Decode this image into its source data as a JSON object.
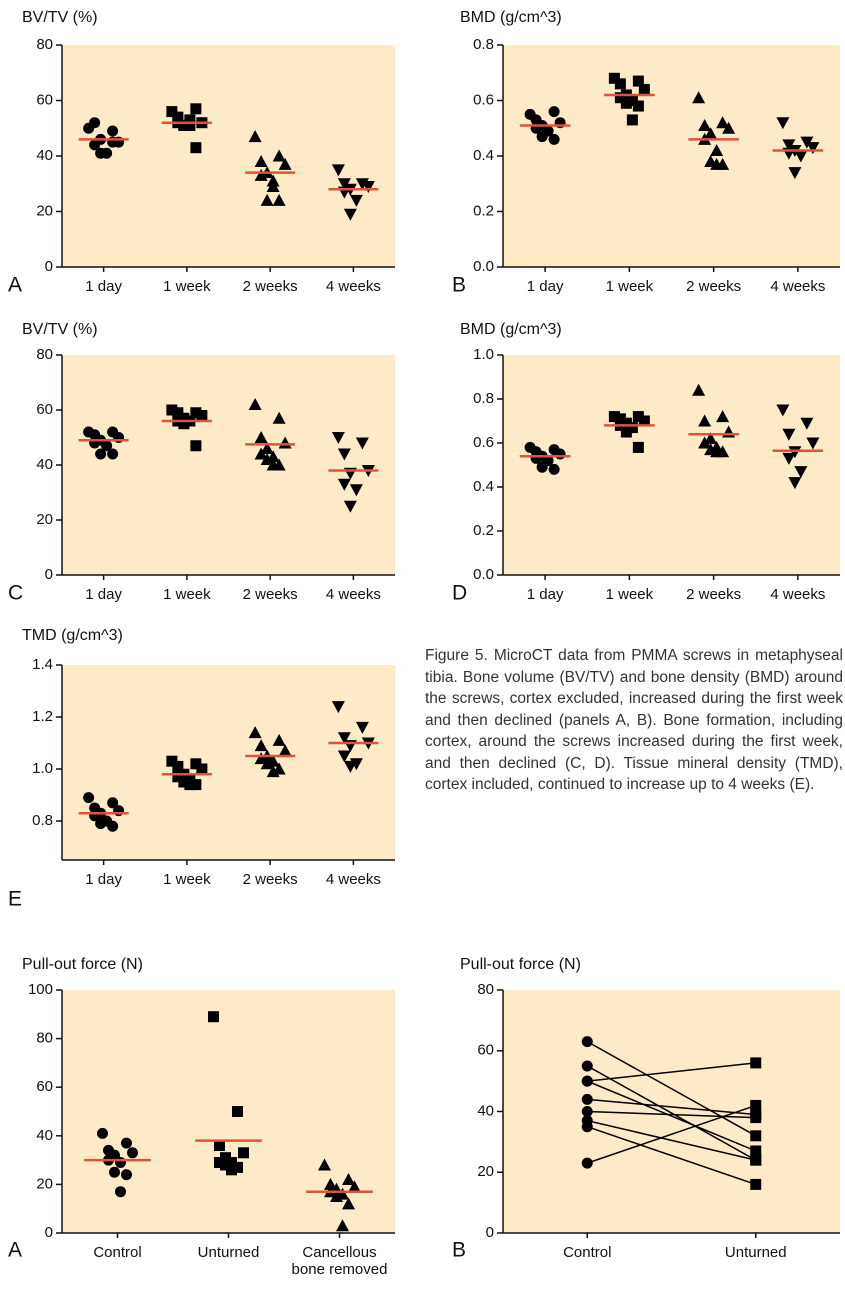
{
  "chart_data": [
    {
      "type": "dotplot",
      "panel_label": "A",
      "title": "BV/TV (%)",
      "categories": [
        "1 day",
        "1 week",
        "2 weeks",
        "4 weeks"
      ],
      "groups": [
        {
          "marker": "circle",
          "values": [
            50,
            49,
            52,
            45,
            46,
            44,
            41,
            41,
            45
          ],
          "mean": 46
        },
        {
          "marker": "square",
          "values": [
            56,
            57,
            54,
            52,
            51,
            52,
            53,
            51,
            43,
            51
          ],
          "mean": 52
        },
        {
          "marker": "triangle",
          "values": [
            47,
            40,
            38,
            37,
            34,
            33,
            29,
            24,
            24,
            31
          ],
          "mean": 34
        },
        {
          "marker": "triangle-down",
          "values": [
            35,
            30,
            30,
            29,
            28,
            27,
            24,
            19
          ],
          "mean": 28
        }
      ],
      "ylim": [
        0,
        80
      ],
      "yticks": [
        0,
        20,
        40,
        60,
        80
      ],
      "color": "#000000",
      "mean_color": "#e0533a",
      "background": "#fdebc8"
    },
    {
      "type": "dotplot",
      "panel_label": "B",
      "title": "BMD (g/cm^3)",
      "categories": [
        "1 day",
        "1 week",
        "2 weeks",
        "4 weeks"
      ],
      "groups": [
        {
          "marker": "circle",
          "values": [
            0.55,
            0.56,
            0.53,
            0.52,
            0.51,
            0.5,
            0.49,
            0.47,
            0.46
          ],
          "mean": 0.51
        },
        {
          "marker": "square",
          "values": [
            0.68,
            0.67,
            0.66,
            0.64,
            0.62,
            0.61,
            0.6,
            0.59,
            0.58,
            0.53
          ],
          "mean": 0.62
        },
        {
          "marker": "triangle",
          "values": [
            0.61,
            0.52,
            0.51,
            0.5,
            0.48,
            0.46,
            0.42,
            0.38,
            0.37,
            0.37
          ],
          "mean": 0.46
        },
        {
          "marker": "triangle-down",
          "values": [
            0.52,
            0.45,
            0.44,
            0.43,
            0.42,
            0.41,
            0.4,
            0.34
          ],
          "mean": 0.42
        }
      ],
      "ylim": [
        0,
        0.8
      ],
      "yticks": [
        {
          "value": 0,
          "label": "0.0"
        },
        0.2,
        0.4,
        0.6,
        0.8
      ],
      "color": "#000000",
      "mean_color": "#e0533a",
      "background": "#fdebc8"
    },
    {
      "type": "dotplot",
      "panel_label": "C",
      "title": "BV/TV (%)",
      "categories": [
        "1 day",
        "1 week",
        "2 weeks",
        "4 weeks"
      ],
      "groups": [
        {
          "marker": "circle",
          "values": [
            52,
            52,
            51,
            50,
            49,
            48,
            47,
            44,
            44
          ],
          "mean": 49
        },
        {
          "marker": "square",
          "values": [
            60,
            59,
            59,
            58,
            57,
            56,
            56,
            55,
            47
          ],
          "mean": 56
        },
        {
          "marker": "triangle",
          "values": [
            62,
            57,
            50,
            48,
            46,
            44,
            43,
            42,
            40,
            40
          ],
          "mean": 47.5
        },
        {
          "marker": "triangle-down",
          "values": [
            50,
            48,
            44,
            38,
            37,
            33,
            31,
            25
          ],
          "mean": 38
        }
      ],
      "ylim": [
        0,
        80
      ],
      "yticks": [
        0,
        20,
        40,
        60,
        80
      ],
      "color": "#000000",
      "mean_color": "#e0533a",
      "background": "#fdebc8"
    },
    {
      "type": "dotplot",
      "panel_label": "D",
      "title": "BMD (g/cm^3)",
      "categories": [
        "1 day",
        "1 week",
        "2 weeks",
        "4 weeks"
      ],
      "groups": [
        {
          "marker": "circle",
          "values": [
            0.58,
            0.57,
            0.56,
            0.55,
            0.54,
            0.53,
            0.52,
            0.49,
            0.48
          ],
          "mean": 0.54
        },
        {
          "marker": "square",
          "values": [
            0.72,
            0.72,
            0.71,
            0.7,
            0.69,
            0.68,
            0.67,
            0.65,
            0.58
          ],
          "mean": 0.68
        },
        {
          "marker": "triangle",
          "values": [
            0.84,
            0.72,
            0.7,
            0.65,
            0.62,
            0.6,
            0.58,
            0.57,
            0.56,
            0.56
          ],
          "mean": 0.64
        },
        {
          "marker": "triangle-down",
          "values": [
            0.75,
            0.69,
            0.64,
            0.6,
            0.56,
            0.53,
            0.47,
            0.42
          ],
          "mean": 0.565
        }
      ],
      "ylim": [
        0,
        1
      ],
      "yticks": [
        {
          "value": 0,
          "label": "0.0"
        },
        0.2,
        0.4,
        0.6,
        0.8,
        {
          "value": 1,
          "label": "1.0"
        }
      ],
      "color": "#000000",
      "mean_color": "#e0533a",
      "background": "#fdebc8"
    },
    {
      "type": "dotplot",
      "panel_label": "E",
      "title": "TMD (g/cm^3)",
      "categories": [
        "1 day",
        "1 week",
        "2 weeks",
        "4 weeks"
      ],
      "groups": [
        {
          "marker": "circle",
          "values": [
            0.89,
            0.87,
            0.85,
            0.84,
            0.83,
            0.82,
            0.8,
            0.79,
            0.78
          ],
          "mean": 0.83
        },
        {
          "marker": "square",
          "values": [
            1.03,
            1.02,
            1.01,
            1.0,
            0.98,
            0.97,
            0.96,
            0.95,
            0.94,
            0.94
          ],
          "mean": 0.98
        },
        {
          "marker": "triangle",
          "values": [
            1.14,
            1.11,
            1.09,
            1.07,
            1.05,
            1.04,
            1.03,
            1.02,
            1.0,
            0.99
          ],
          "mean": 1.05
        },
        {
          "marker": "triangle-down",
          "values": [
            1.24,
            1.16,
            1.12,
            1.1,
            1.09,
            1.05,
            1.02,
            1.01
          ],
          "mean": 1.1
        }
      ],
      "ylim": [
        0.65,
        1.4
      ],
      "yticks": [
        0.8,
        {
          "value": 1,
          "label": "1.0"
        },
        1.2,
        1.4
      ],
      "color": "#000000",
      "mean_color": "#e0533a",
      "background": "#fdebc8"
    },
    {
      "type": "dotplot",
      "panel_label": "A",
      "title": "Pull-out force (N)",
      "categories": [
        "Control",
        "Unturned",
        "Cancellous bone removed"
      ],
      "groups": [
        {
          "marker": "circle",
          "values": [
            41,
            37,
            34,
            33,
            32,
            30,
            29,
            25,
            24,
            17
          ],
          "mean": 30
        },
        {
          "marker": "square",
          "values": [
            89,
            50,
            36,
            33,
            31,
            29,
            29,
            28,
            27,
            26
          ],
          "mean": 38
        },
        {
          "marker": "triangle",
          "values": [
            28,
            22,
            20,
            19,
            18,
            17,
            16,
            15,
            12,
            3
          ],
          "mean": 17
        }
      ],
      "ylim": [
        0,
        100
      ],
      "yticks": [
        0,
        20,
        40,
        60,
        80,
        100
      ],
      "color": "#000000",
      "mean_color": "#e0533a",
      "background": "#fdebc8"
    },
    {
      "type": "paired",
      "panel_label": "B",
      "title": "Pull-out force (N)",
      "categories": [
        "Control",
        "Unturned"
      ],
      "markers": [
        "circle",
        "square"
      ],
      "series": [
        {
          "values": [
            63,
            32
          ]
        },
        {
          "values": [
            55,
            24
          ]
        },
        {
          "values": [
            50,
            56
          ]
        },
        {
          "values": [
            50,
            27
          ]
        },
        {
          "values": [
            44,
            39
          ]
        },
        {
          "values": [
            40,
            38
          ]
        },
        {
          "values": [
            37,
            24
          ]
        },
        {
          "values": [
            35,
            16
          ]
        },
        {
          "values": [
            23,
            42
          ]
        }
      ],
      "ylim": [
        0,
        80
      ],
      "yticks": [
        0,
        20,
        40,
        60,
        80
      ],
      "color": "#000000",
      "background": "#fdebc8"
    }
  ],
  "caption": "Figure 5. MicroCT data from PMMA screws in metaphyseal tibia. Bone volume (BV/TV) and bone density (BMD) around the screws, cortex excluded, increased during the first week and then declined (panels A, B). Bone formation, including cortex, around the screws increased during the first week, and then declined (C, D). Tissue mineral density (TMD), cortex included, continued to increase up to 4 weeks (E)."
}
